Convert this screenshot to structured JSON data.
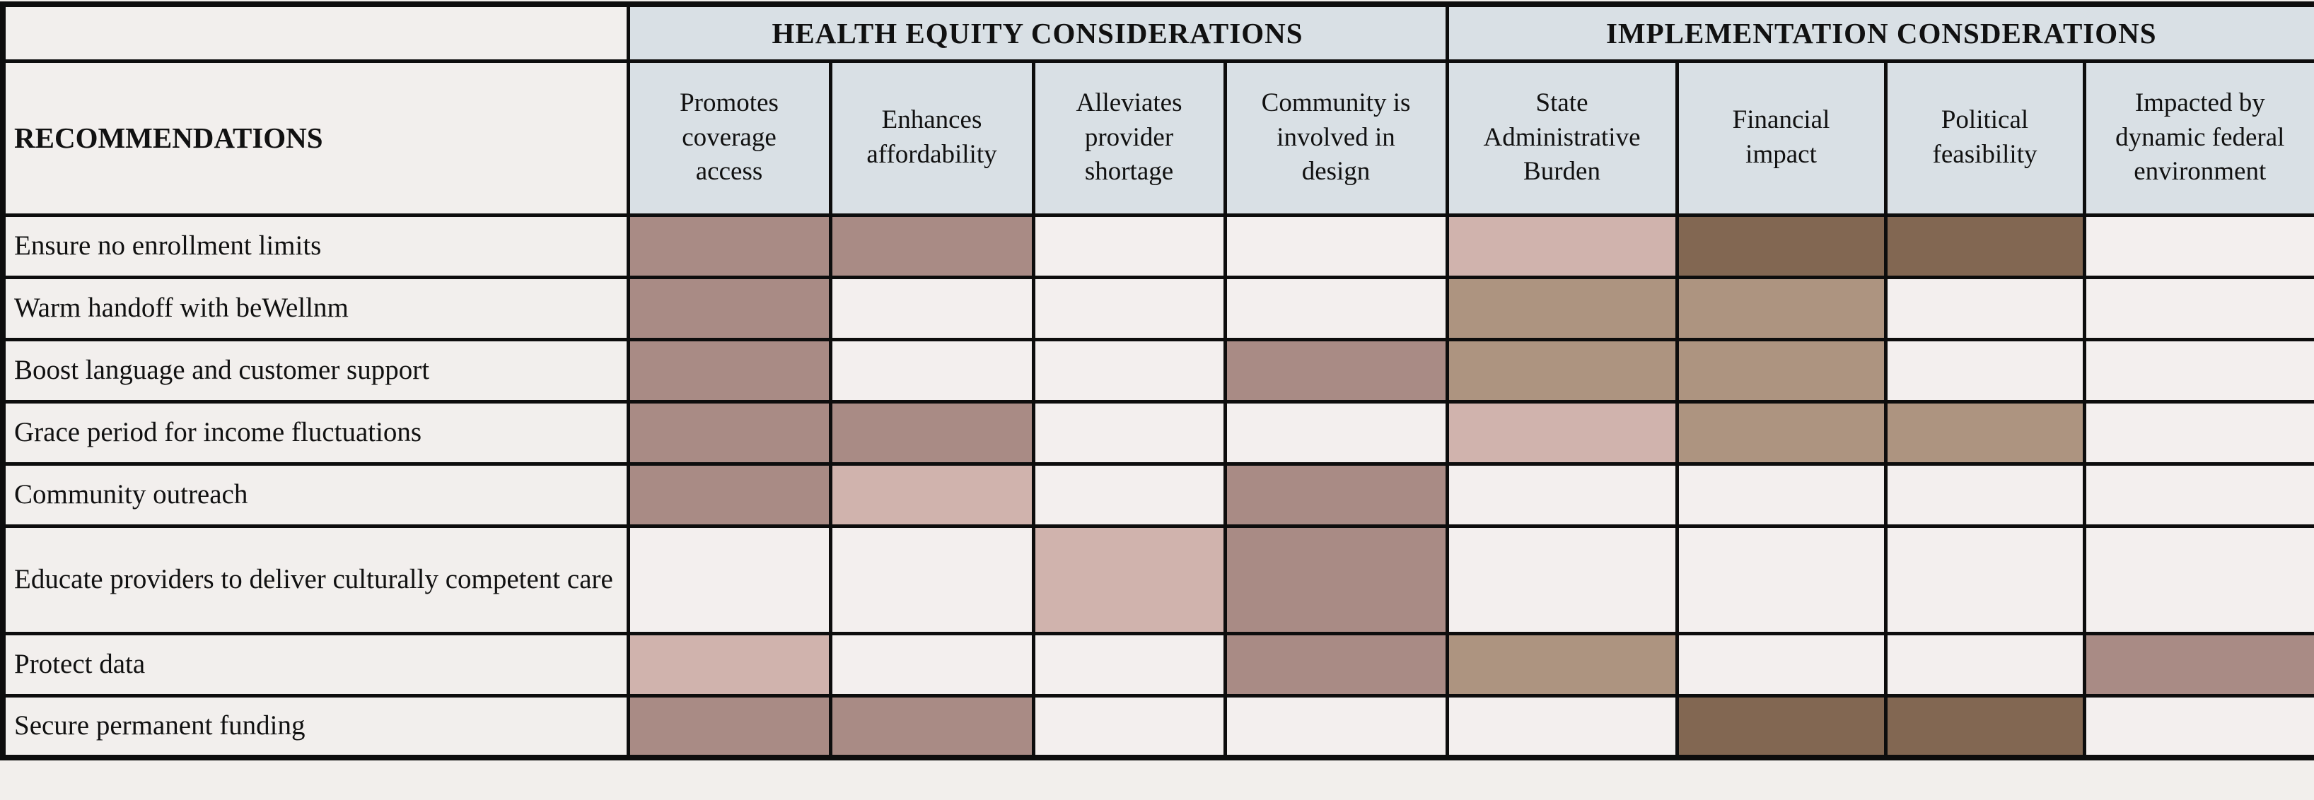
{
  "chart_data": {
    "type": "heatmap",
    "title": "",
    "corner_header": "RECOMMENDATIONS",
    "column_groups": [
      {
        "label": "HEALTH EQUITY CONSIDERATIONS",
        "span": 4
      },
      {
        "label": "IMPLEMENTATION CONSDERATIONS",
        "span": 4
      }
    ],
    "columns": [
      "Promotes coverage access",
      "Enhances affordability",
      "Alleviates provider shortage",
      "Community is involved in design",
      "State Administrative Burden",
      "Financial impact",
      "Political feasibility",
      "Impacted by dynamic federal environment"
    ],
    "rows": [
      {
        "label": "Ensure no enrollment limits",
        "cells": [
          "medium",
          "medium",
          "none",
          "none",
          "light",
          "dark",
          "dark",
          "none"
        ]
      },
      {
        "label": "Warm handoff with beWellnm",
        "cells": [
          "medium",
          "none",
          "none",
          "none",
          "tan",
          "tan",
          "none",
          "none"
        ]
      },
      {
        "label": "Boost language and customer support",
        "cells": [
          "medium",
          "none",
          "none",
          "medium",
          "tan",
          "tan",
          "none",
          "none"
        ]
      },
      {
        "label": "Grace period for income fluctuations",
        "cells": [
          "medium",
          "medium",
          "none",
          "none",
          "light",
          "tan",
          "tan",
          "none"
        ]
      },
      {
        "label": "Community outreach",
        "cells": [
          "medium",
          "light",
          "none",
          "medium",
          "none",
          "none",
          "none",
          "none"
        ]
      },
      {
        "label": "Educate providers to deliver culturally competent care",
        "cells": [
          "none",
          "none",
          "light",
          "medium",
          "none",
          "none",
          "none",
          "none"
        ]
      },
      {
        "label": "Protect data",
        "cells": [
          "light",
          "none",
          "none",
          "medium",
          "tan",
          "none",
          "none",
          "medium"
        ]
      },
      {
        "label": "Secure permanent funding",
        "cells": [
          "medium",
          "medium",
          "none",
          "none",
          "none",
          "dark",
          "dark",
          "none"
        ]
      }
    ],
    "layout_hints": {
      "grid": true,
      "legend": "none shown",
      "cell_encoding": "color intensity category per recommendation-consideration pair"
    }
  },
  "colors": {
    "border": "#0d0d0d",
    "header_bg": "#d9e0e5",
    "label_bg": "#f2efed",
    "scale": {
      "none": "#f3efee",
      "light": "#d0b3ad",
      "medium": "#a98b85",
      "tan": "#ad9480",
      "dark": "#826752"
    }
  }
}
